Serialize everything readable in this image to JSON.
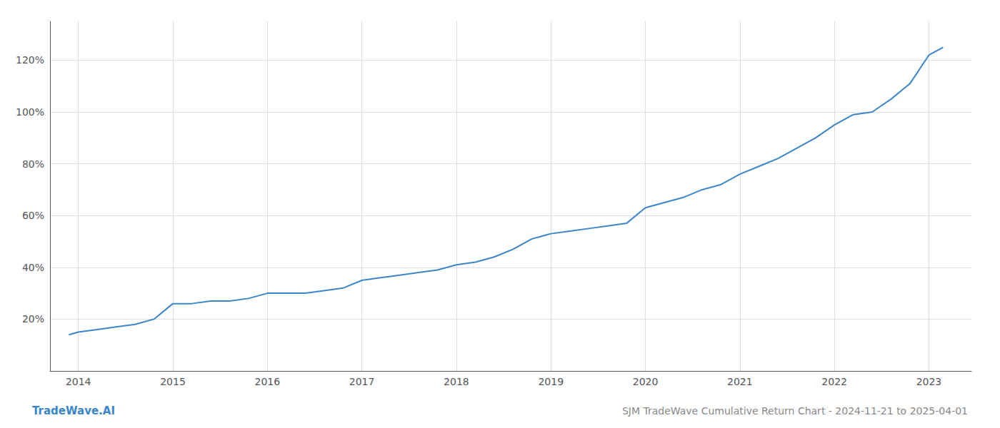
{
  "chart_data": {
    "type": "line",
    "title": "SJM TradeWave Cumulative Return Chart - 2024-11-21 to 2025-04-01",
    "annotations": [
      "TradeWave.AI"
    ],
    "x": [
      2013.9,
      2014.0,
      2014.2,
      2014.4,
      2014.6,
      2014.8,
      2015.0,
      2015.2,
      2015.4,
      2015.6,
      2015.8,
      2016.0,
      2016.2,
      2016.4,
      2016.6,
      2016.8,
      2017.0,
      2017.2,
      2017.4,
      2017.6,
      2017.8,
      2018.0,
      2018.2,
      2018.4,
      2018.6,
      2018.8,
      2019.0,
      2019.2,
      2019.4,
      2019.6,
      2019.8,
      2020.0,
      2020.2,
      2020.4,
      2020.6,
      2020.8,
      2021.0,
      2021.2,
      2021.4,
      2021.6,
      2021.8,
      2022.0,
      2022.2,
      2022.4,
      2022.6,
      2022.8,
      2023.0,
      2023.15
    ],
    "values": [
      14,
      15,
      16,
      17,
      18,
      20,
      26,
      26,
      27,
      27,
      28,
      30,
      30,
      30,
      31,
      32,
      35,
      36,
      37,
      38,
      39,
      41,
      42,
      44,
      47,
      51,
      53,
      54,
      55,
      56,
      57,
      63,
      65,
      67,
      70,
      72,
      76,
      79,
      82,
      86,
      90,
      95,
      99,
      100,
      105,
      111,
      122,
      125
    ],
    "color": "#3a86c8",
    "xlim": [
      2013.7,
      2023.45
    ],
    "xticks": [
      2014,
      2015,
      2016,
      2017,
      2018,
      2019,
      2020,
      2021,
      2022,
      2023
    ],
    "ylim": [
      0,
      135
    ],
    "yticks": [
      {
        "value": 20,
        "label": "20%"
      },
      {
        "value": 40,
        "label": "40%"
      },
      {
        "value": 60,
        "label": "60%"
      },
      {
        "value": 80,
        "label": "80%"
      },
      {
        "value": 100,
        "label": "100%"
      },
      {
        "value": 120,
        "label": "120%"
      }
    ],
    "grid": true
  }
}
